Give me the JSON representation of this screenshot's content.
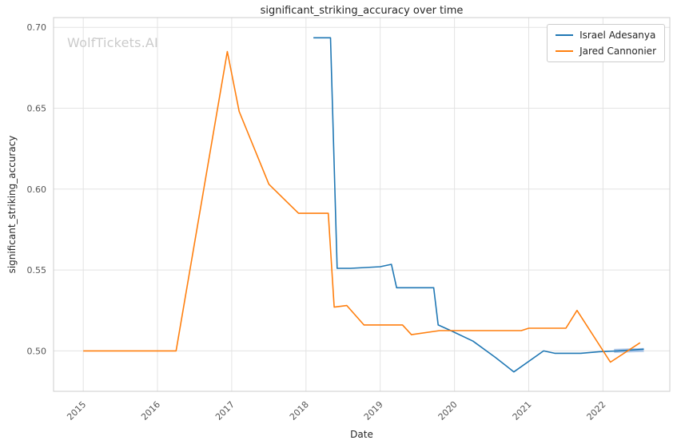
{
  "chart_data": {
    "type": "line",
    "title": "significant_striking_accuracy over time",
    "xlabel": "Date",
    "ylabel": "significant_striking_accuracy",
    "watermark": "WolfTickets.AI",
    "grid": true,
    "legend_position": "top-right",
    "x_unit": "year_decimal",
    "xlim": [
      2014.6,
      2022.9
    ],
    "ylim": [
      0.475,
      0.706
    ],
    "x_ticks": [
      {
        "value": 2015,
        "label": "2015"
      },
      {
        "value": 2016,
        "label": "2016"
      },
      {
        "value": 2017,
        "label": "2017"
      },
      {
        "value": 2018,
        "label": "2018"
      },
      {
        "value": 2019,
        "label": "2019"
      },
      {
        "value": 2020,
        "label": "2020"
      },
      {
        "value": 2021,
        "label": "2021"
      },
      {
        "value": 2022,
        "label": "2022"
      }
    ],
    "y_ticks": [
      {
        "value": 0.5,
        "label": "0.50"
      },
      {
        "value": 0.55,
        "label": "0.55"
      },
      {
        "value": 0.6,
        "label": "0.60"
      },
      {
        "value": 0.65,
        "label": "0.65"
      },
      {
        "value": 0.7,
        "label": "0.70"
      }
    ],
    "series": [
      {
        "name": "Israel Adesanya",
        "color": "#1f77b4",
        "points": [
          [
            2018.1,
            0.6935
          ],
          [
            2018.33,
            0.6935
          ],
          [
            2018.42,
            0.551
          ],
          [
            2018.6,
            0.551
          ],
          [
            2019.0,
            0.552
          ],
          [
            2019.15,
            0.5535
          ],
          [
            2019.22,
            0.539
          ],
          [
            2019.72,
            0.539
          ],
          [
            2019.78,
            0.516
          ],
          [
            2019.95,
            0.5125
          ],
          [
            2020.25,
            0.506
          ],
          [
            2020.55,
            0.496
          ],
          [
            2020.8,
            0.487
          ],
          [
            2021.2,
            0.5
          ],
          [
            2021.35,
            0.4985
          ],
          [
            2021.7,
            0.4985
          ],
          [
            2021.95,
            0.4995
          ],
          [
            2022.2,
            0.5
          ],
          [
            2022.55,
            0.501
          ]
        ]
      },
      {
        "name": "Jared Cannonier",
        "color": "#ff7f0e",
        "points": [
          [
            2015.0,
            0.5
          ],
          [
            2016.25,
            0.5
          ],
          [
            2016.94,
            0.685
          ],
          [
            2017.1,
            0.648
          ],
          [
            2017.5,
            0.603
          ],
          [
            2017.9,
            0.585
          ],
          [
            2018.3,
            0.585
          ],
          [
            2018.38,
            0.527
          ],
          [
            2018.55,
            0.528
          ],
          [
            2018.78,
            0.516
          ],
          [
            2019.3,
            0.516
          ],
          [
            2019.42,
            0.51
          ],
          [
            2019.8,
            0.5125
          ],
          [
            2020.9,
            0.5125
          ],
          [
            2021.0,
            0.514
          ],
          [
            2021.5,
            0.514
          ],
          [
            2021.65,
            0.525
          ],
          [
            2022.1,
            0.493
          ],
          [
            2022.5,
            0.505
          ]
        ]
      }
    ],
    "end_highlight": {
      "series": "Israel Adesanya",
      "color": "#aec7e8",
      "width": 5,
      "points": [
        [
          2022.15,
          0.5
        ],
        [
          2022.55,
          0.5005
        ]
      ]
    }
  },
  "colors": {
    "background": "#ffffff",
    "grid": "#e3e3e3",
    "spine": "#cccccc",
    "tick_text": "#555555",
    "title_text": "#262626",
    "watermark": "#cbcbcb",
    "series_blue": "#1f77b4",
    "series_orange": "#ff7f0e"
  }
}
